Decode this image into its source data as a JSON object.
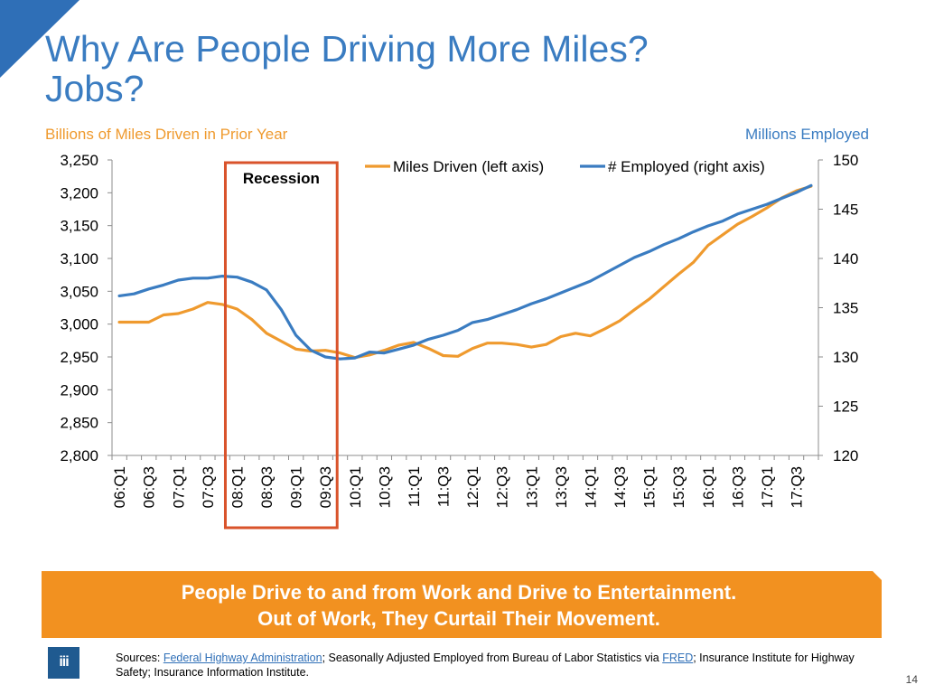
{
  "slide": {
    "title_line1": "Why Are People Driving More Miles?",
    "title_line2": "Jobs?",
    "left_axis_caption": "Billions of Miles Driven in Prior Year",
    "right_axis_caption": "Millions Employed",
    "banner_line1": "People Drive to and from Work and Drive to Entertainment.",
    "banner_line2": "Out of Work, They Curtail Their Movement.",
    "sources_prefix": "Sources: ",
    "sources_link1": "Federal Highway Administration",
    "sources_mid": "; Seasonally Adjusted Employed from Bureau of Labor Statistics via ",
    "sources_link2": "FRED",
    "sources_suffix": "; Insurance Institute for Highway Safety; Insurance Information Institute.",
    "logo_text": "iii",
    "page_number": "14",
    "colors": {
      "title": "#3a7cc1",
      "miles": "#ef9a2e",
      "employed": "#3a7cc1",
      "recession_box": "#d9532b",
      "banner": "#f29120",
      "logo": "#1f5a90"
    }
  },
  "chart_data": {
    "type": "line",
    "categories": [
      "06:Q1",
      "06:Q2",
      "06:Q3",
      "06:Q4",
      "07:Q1",
      "07:Q2",
      "07:Q3",
      "07:Q4",
      "08:Q1",
      "08:Q2",
      "08:Q3",
      "08:Q4",
      "09:Q1",
      "09:Q2",
      "09:Q3",
      "09:Q4",
      "10:Q1",
      "10:Q2",
      "10:Q3",
      "10:Q4",
      "11:Q1",
      "11:Q2",
      "11:Q3",
      "11:Q4",
      "12:Q1",
      "12:Q2",
      "12:Q3",
      "12:Q4",
      "13:Q1",
      "13:Q2",
      "13:Q3",
      "13:Q4",
      "14:Q1",
      "14:Q2",
      "14:Q3",
      "14:Q4",
      "15:Q1",
      "15:Q2",
      "15:Q3",
      "15:Q4",
      "16:Q1",
      "16:Q2",
      "16:Q3",
      "16:Q4",
      "17:Q1",
      "17:Q2",
      "17:Q3",
      "17:Q4"
    ],
    "tick_labels": [
      "06:Q1",
      "06:Q3",
      "07:Q1",
      "07:Q3",
      "08:Q1",
      "08:Q3",
      "09:Q1",
      "09:Q3",
      "10:Q1",
      "10:Q3",
      "11:Q1",
      "11:Q3",
      "12:Q1",
      "12:Q3",
      "13:Q1",
      "13:Q3",
      "14:Q1",
      "14:Q3",
      "15:Q1",
      "15:Q3",
      "16:Q1",
      "16:Q3",
      "17:Q1",
      "17:Q3"
    ],
    "series": [
      {
        "name": "Miles Driven (left axis)",
        "axis": "left",
        "values": [
          3003,
          3003,
          3003,
          3014,
          3016,
          3023,
          3033,
          3030,
          3023,
          3007,
          2986,
          2974,
          2962,
          2959,
          2960,
          2956,
          2949,
          2953,
          2960,
          2968,
          2972,
          2963,
          2952,
          2951,
          2963,
          2971,
          2971,
          2969,
          2965,
          2969,
          2981,
          2986,
          2982,
          2993,
          3005,
          3022,
          3038,
          3057,
          3076,
          3094,
          3120,
          3136,
          3152,
          3164,
          3177,
          3192,
          3203,
          3210
        ]
      },
      {
        "name": "# Employed (right axis)",
        "axis": "right",
        "values": [
          136.2,
          136.4,
          136.9,
          137.3,
          137.8,
          138.0,
          138.0,
          138.2,
          138.1,
          137.6,
          136.8,
          134.8,
          132.2,
          130.7,
          130.0,
          129.8,
          129.9,
          130.5,
          130.4,
          130.8,
          131.2,
          131.8,
          132.2,
          132.7,
          133.5,
          133.8,
          134.3,
          134.8,
          135.4,
          135.9,
          136.5,
          137.1,
          137.7,
          138.5,
          139.3,
          140.1,
          140.7,
          141.4,
          142.0,
          142.7,
          143.3,
          143.8,
          144.5,
          145.0,
          145.5,
          146.1,
          146.7,
          147.4
        ]
      }
    ],
    "y_left": {
      "min": 2800,
      "max": 3250,
      "step": 50,
      "tick_labels": [
        "2,800",
        "2,850",
        "2,900",
        "2,950",
        "3,000",
        "3,050",
        "3,100",
        "3,150",
        "3,200",
        "3,250"
      ]
    },
    "y_right": {
      "min": 120,
      "max": 150,
      "step": 5,
      "tick_labels": [
        "120",
        "125",
        "130",
        "135",
        "140",
        "145",
        "150"
      ]
    },
    "annotation": {
      "label": "Recession",
      "from": "08:Q1",
      "to": "09:Q3"
    },
    "legend_position": "top",
    "grid": false
  }
}
